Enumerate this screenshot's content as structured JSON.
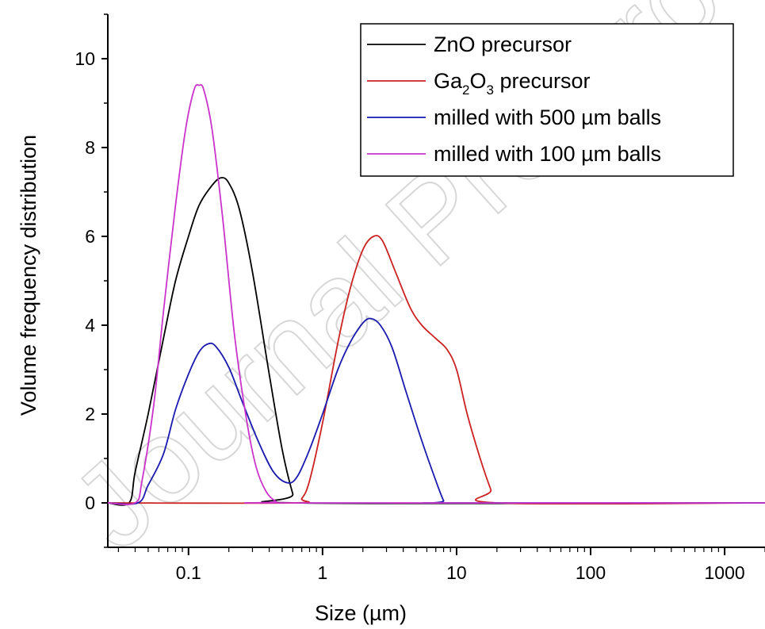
{
  "watermark": "Journal Pre-proof",
  "chart_data": {
    "type": "line",
    "xlabel": "Size (µm)",
    "ylabel": "Volume frequency distribution",
    "x_scale": "log",
    "xlim": [
      0.025,
      2000
    ],
    "ylim": [
      -1,
      11
    ],
    "x_ticks": [
      0.1,
      1,
      10,
      100,
      1000
    ],
    "x_tick_labels": [
      "0.1",
      "1",
      "10",
      "100",
      "1000"
    ],
    "y_ticks": [
      0,
      2,
      4,
      6,
      8,
      10
    ],
    "y_tick_labels": [
      "0",
      "2",
      "4",
      "6",
      "8",
      "10"
    ],
    "legend_position": "top-right",
    "series": [
      {
        "name": "ZnO precursor",
        "color": "#000000",
        "points": [
          [
            0.025,
            0
          ],
          [
            0.036,
            0
          ],
          [
            0.04,
            0.7
          ],
          [
            0.05,
            2.0
          ],
          [
            0.065,
            3.7
          ],
          [
            0.08,
            5.0
          ],
          [
            0.1,
            6.0
          ],
          [
            0.12,
            6.7
          ],
          [
            0.15,
            7.15
          ],
          [
            0.175,
            7.32
          ],
          [
            0.2,
            7.2
          ],
          [
            0.24,
            6.6
          ],
          [
            0.3,
            5.2
          ],
          [
            0.4,
            2.9
          ],
          [
            0.5,
            1.2
          ],
          [
            0.6,
            0.2
          ],
          [
            0.65,
            0
          ],
          [
            2000,
            0
          ]
        ]
      },
      {
        "name": "Ga2O3 precursor",
        "name_parts": [
          "Ga",
          "2",
          "O",
          "3",
          " precursor"
        ],
        "color": "#cc2222",
        "points": [
          [
            0.025,
            0
          ],
          [
            0.6,
            0
          ],
          [
            0.7,
            0.1
          ],
          [
            0.8,
            0.5
          ],
          [
            1.0,
            1.8
          ],
          [
            1.3,
            3.6
          ],
          [
            1.6,
            4.8
          ],
          [
            2.0,
            5.7
          ],
          [
            2.4,
            6.0
          ],
          [
            2.8,
            5.9
          ],
          [
            3.5,
            5.2
          ],
          [
            4.5,
            4.4
          ],
          [
            5.5,
            4.0
          ],
          [
            7.0,
            3.7
          ],
          [
            8.5,
            3.45
          ],
          [
            10,
            3.0
          ],
          [
            12,
            2.0
          ],
          [
            15,
            1.0
          ],
          [
            18,
            0.3
          ],
          [
            20,
            0
          ],
          [
            2000,
            0
          ]
        ]
      },
      {
        "name": "milled with 500 µm balls",
        "color": "#1a1ab0",
        "points": [
          [
            0.025,
            0
          ],
          [
            0.042,
            0
          ],
          [
            0.05,
            0.4
          ],
          [
            0.065,
            1.1
          ],
          [
            0.08,
            2.1
          ],
          [
            0.1,
            2.9
          ],
          [
            0.12,
            3.4
          ],
          [
            0.14,
            3.58
          ],
          [
            0.16,
            3.52
          ],
          [
            0.2,
            3.05
          ],
          [
            0.25,
            2.3
          ],
          [
            0.33,
            1.4
          ],
          [
            0.43,
            0.7
          ],
          [
            0.55,
            0.45
          ],
          [
            0.65,
            0.6
          ],
          [
            0.8,
            1.2
          ],
          [
            1.0,
            2.0
          ],
          [
            1.3,
            3.0
          ],
          [
            1.6,
            3.6
          ],
          [
            2.0,
            4.05
          ],
          [
            2.3,
            4.15
          ],
          [
            2.7,
            4.0
          ],
          [
            3.3,
            3.5
          ],
          [
            4.2,
            2.5
          ],
          [
            5.5,
            1.4
          ],
          [
            7,
            0.5
          ],
          [
            8,
            0.05
          ],
          [
            8.5,
            0
          ],
          [
            2000,
            0
          ]
        ]
      },
      {
        "name": "milled with 100 µm balls",
        "color": "#cc33cc",
        "points": [
          [
            0.025,
            0
          ],
          [
            0.04,
            0
          ],
          [
            0.045,
            0.5
          ],
          [
            0.055,
            2.2
          ],
          [
            0.065,
            4.3
          ],
          [
            0.08,
            6.7
          ],
          [
            0.095,
            8.4
          ],
          [
            0.11,
            9.3
          ],
          [
            0.12,
            9.4
          ],
          [
            0.13,
            9.3
          ],
          [
            0.15,
            8.4
          ],
          [
            0.18,
            6.4
          ],
          [
            0.22,
            3.8
          ],
          [
            0.27,
            1.9
          ],
          [
            0.32,
            0.8
          ],
          [
            0.38,
            0.25
          ],
          [
            0.45,
            0.03
          ],
          [
            0.5,
            0
          ],
          [
            2000,
            0
          ]
        ]
      }
    ]
  }
}
